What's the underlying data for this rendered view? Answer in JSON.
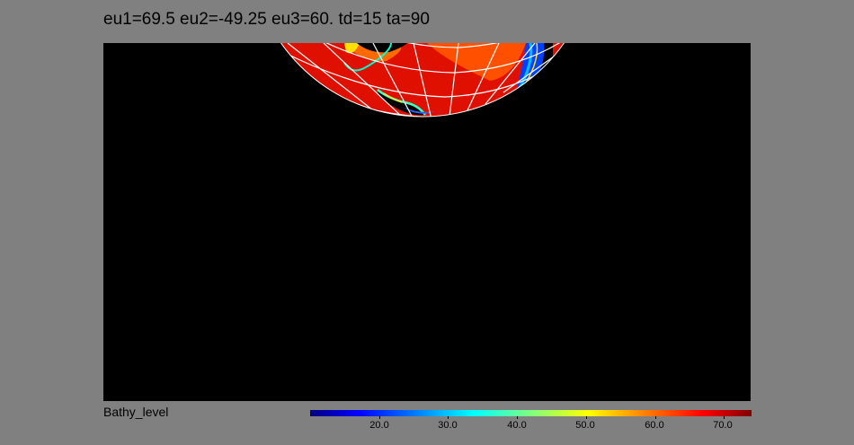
{
  "title": "eu1=69.5 eu2=-49.25 eu3=60. td=15 ta=90",
  "colorbar": {
    "variable": "Bathy_level",
    "ticks": [
      "20.0",
      "30.0",
      "40.0",
      "50.0",
      "60.0",
      "70.0"
    ],
    "tick_values": [
      20,
      30,
      40,
      50,
      60,
      70
    ],
    "range": [
      10,
      74
    ]
  },
  "colors": {
    "background": "#808080",
    "map_background": "#000000",
    "gridlines": "#ffffff",
    "land": "#000000"
  }
}
